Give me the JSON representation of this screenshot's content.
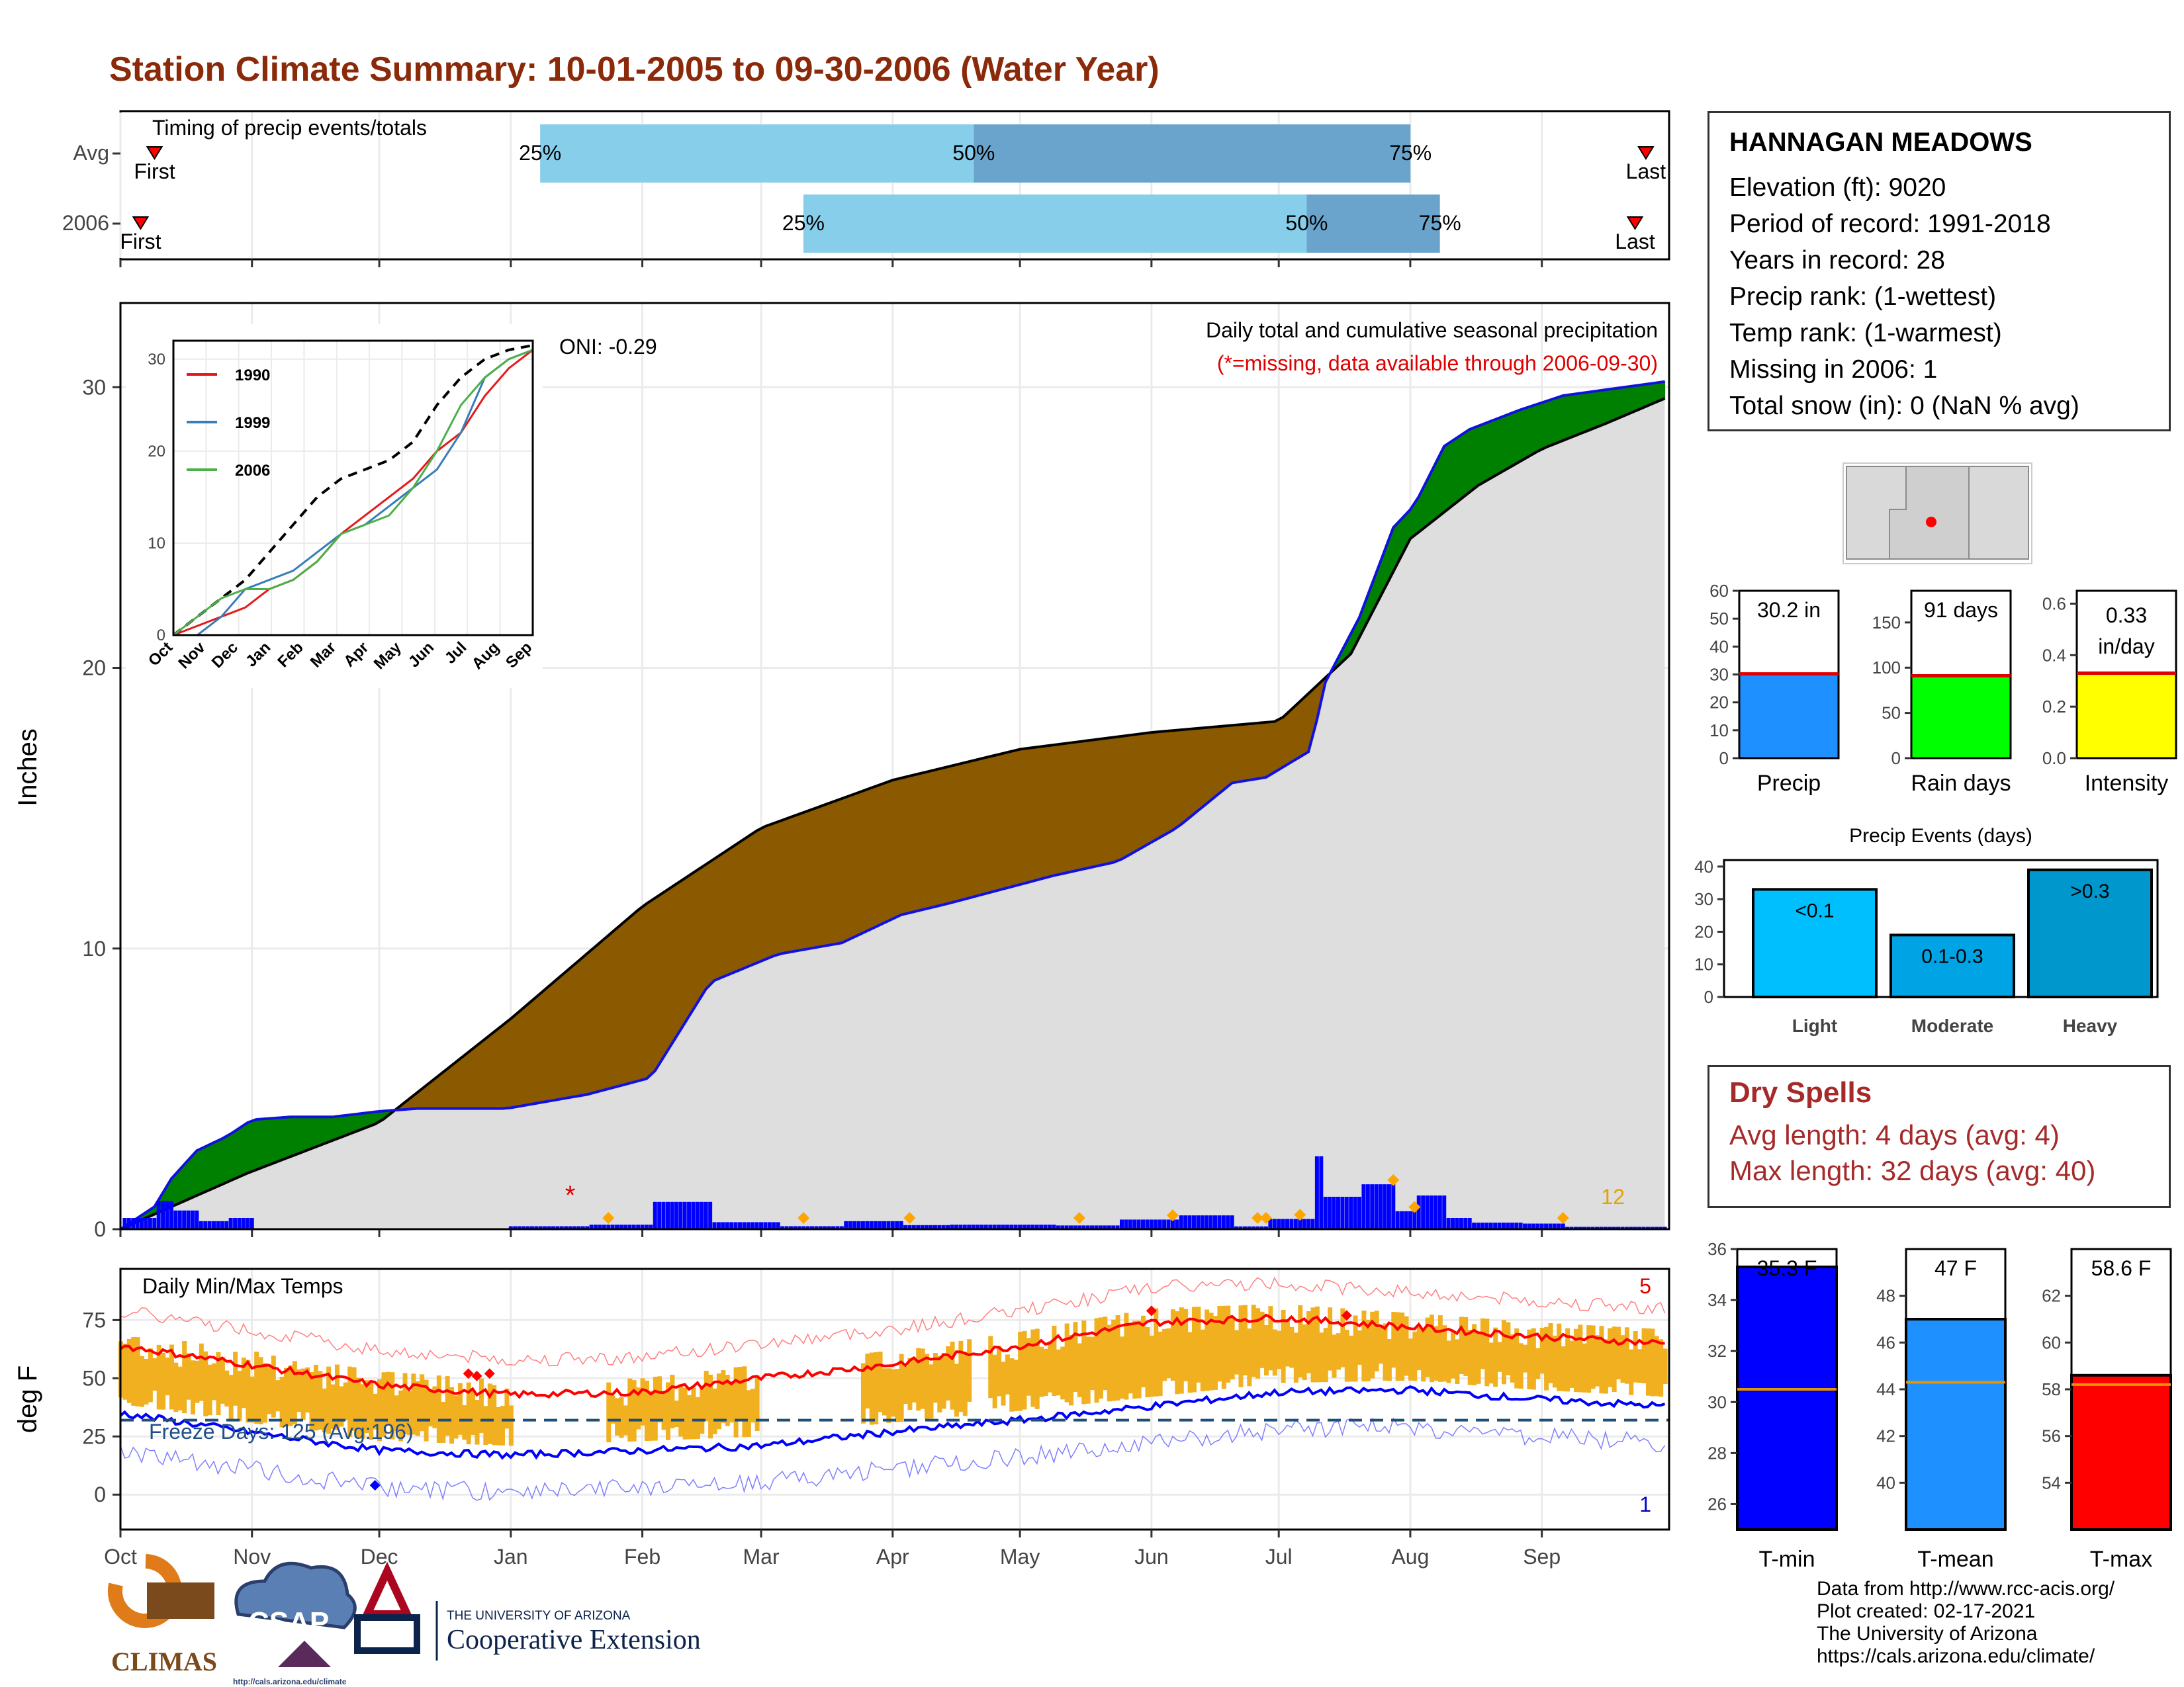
{
  "title": "Station Climate Summary: 10-01-2005 to 09-30-2006 (Water Year)",
  "timing": {
    "label": "Timing of precip events/totals",
    "rows": [
      {
        "name": "Avg",
        "first": 0.022,
        "p25": 0.271,
        "p50": 0.551,
        "p75": 0.833,
        "last": 0.985,
        "first_label": "First",
        "last_label": "Last"
      },
      {
        "name": "2006",
        "first": 0.013,
        "p25": 0.441,
        "p50": 0.766,
        "p75": 0.852,
        "last": 0.978,
        "first_label": "First",
        "last_label": "Last"
      }
    ],
    "pct_labels": [
      "25%",
      "50%",
      "75%"
    ]
  },
  "station": {
    "name": "HANNAGAN MEADOWS",
    "lines": [
      "Elevation (ft): 9020",
      "Period of record: 1991-2018",
      "Years in record: 28",
      "Precip rank:  (1-wettest)",
      "Temp rank:  (1-warmest)",
      "Missing in 2006: 1",
      "Total snow (in): 0 (NaN % avg)"
    ]
  },
  "dry_spells": {
    "title": "Dry Spells",
    "avg": "Avg length: 4 days (avg: 4)",
    "max": "Max length: 32 days (avg: 40)"
  },
  "credits": [
    "Data from http://www.rcc-acis.org/",
    "Plot created: 02-17-2021",
    "The University of Arizona",
    "https://cals.arizona.edu/climate/"
  ],
  "logos": {
    "climas": "CLIMAS",
    "csap": "CSAP",
    "csap_url": "http://cals.arizona.edu/climate",
    "ua_small": "THE UNIVERSITY OF ARIZONA",
    "ua_big": "Cooperative Extension"
  },
  "months": [
    "Oct",
    "Nov",
    "Dec",
    "Jan",
    "Feb",
    "Mar",
    "Apr",
    "May",
    "Jun",
    "Jul",
    "Aug",
    "Sep"
  ],
  "chart_data": [
    {
      "type": "area",
      "title": "Daily total and cumulative seasonal precipitation",
      "subtitle": "(*=missing, data available through 2006-09-30)",
      "ylabel": "Inches",
      "ylim": [
        0,
        33
      ],
      "yticks": [
        0,
        10,
        20,
        30
      ],
      "oni": "ONI: -0.29",
      "extreme_count": "12",
      "avg_cumulative": {
        "x_day": [
          0,
          30,
          61,
          92,
          123,
          151,
          182,
          212,
          243,
          273,
          290,
          304,
          320,
          335,
          350,
          364
        ],
        "y": [
          0,
          2.0,
          3.8,
          7.5,
          11.5,
          14.3,
          16.0,
          17.1,
          17.7,
          18.1,
          20.5,
          24.6,
          26.5,
          27.8,
          28.7,
          29.6
        ]
      },
      "obs_cumulative": {
        "x_day": [
          0,
          8,
          12,
          18,
          25,
          31,
          40,
          50,
          61,
          70,
          91,
          110,
          125,
          139,
          155,
          170,
          184,
          195,
          220,
          235,
          249,
          262,
          270,
          281,
          283,
          292,
          300,
          305,
          312,
          318,
          330,
          340,
          364
        ],
        "y": [
          0,
          0.8,
          1.8,
          2.8,
          3.3,
          3.9,
          4.0,
          4.0,
          4.2,
          4.3,
          4.3,
          4.8,
          5.4,
          8.8,
          9.8,
          10.2,
          11.2,
          11.6,
          12.6,
          13.1,
          14.3,
          15.9,
          16.1,
          17.1,
          19.2,
          21.8,
          25.0,
          25.8,
          27.9,
          28.5,
          29.2,
          29.7,
          30.2
        ]
      },
      "markers": {
        "missing_star_day": 106,
        "highlight_days": [
          115,
          161,
          186,
          226,
          248,
          268,
          270,
          278,
          300,
          305,
          340
        ]
      },
      "inset": {
        "type": "line",
        "series": [
          {
            "name": "1990",
            "color": "#e41a1c",
            "y": [
              0,
              1,
              2,
              3,
              5,
              6,
              8,
              11,
              13,
              15,
              17,
              20,
              22,
              26,
              29,
              31
            ]
          },
          {
            "name": "1999",
            "color": "#377eb8",
            "y": [
              0,
              0,
              2,
              5,
              6,
              7,
              9,
              11,
              12,
              14,
              16,
              18,
              22,
              28,
              30,
              31
            ]
          },
          {
            "name": "2006",
            "color": "#4daf4a",
            "y": [
              0,
              2,
              4,
              5,
              5,
              6,
              8,
              11,
              12,
              13,
              16,
              20,
              25,
              28,
              30,
              31
            ]
          }
        ],
        "avg_y": [
          0,
          2,
          4,
          6,
          9,
          12,
          15,
          17,
          18,
          19,
          21,
          25,
          28,
          30,
          31,
          31.5
        ],
        "yticks": [
          0,
          10,
          20,
          30
        ],
        "xlabels": [
          "Oct",
          "Nov",
          "Dec",
          "Jan",
          "Feb",
          "Mar",
          "Apr",
          "May",
          "Jun",
          "Jul",
          "Aug",
          "Sep"
        ]
      }
    },
    {
      "type": "line",
      "title": "Daily Min/Max Temps",
      "ylabel": "deg F",
      "ylim": [
        -15,
        97
      ],
      "yticks": [
        0,
        25,
        50,
        75
      ],
      "freeze_text": "Freeze Days: 125 (Avg:196)",
      "freeze_line": 32,
      "count_hot": "5",
      "count_cold": "1",
      "avg_max": {
        "x_day": [
          0,
          30,
          61,
          92,
          123,
          151,
          182,
          212,
          243,
          273,
          304,
          334,
          364
        ],
        "y": [
          64,
          56,
          47,
          43,
          44,
          50,
          56,
          64,
          74,
          76,
          72,
          68,
          65
        ]
      },
      "avg_min": {
        "x_day": [
          0,
          30,
          61,
          92,
          123,
          151,
          182,
          212,
          243,
          273,
          304,
          334,
          364
        ],
        "y": [
          35,
          27,
          19,
          17,
          19,
          21,
          27,
          32,
          38,
          44,
          45,
          41,
          38
        ]
      }
    },
    {
      "type": "bar",
      "categories": [
        "Precip",
        "Rain days",
        "Intensity"
      ],
      "values": [
        30.2,
        91,
        0.33
      ],
      "labels": [
        "30.2 in",
        "91 days",
        "0.33 in/day"
      ],
      "ylims": [
        [
          0,
          60
        ],
        [
          0,
          185
        ],
        [
          0,
          0.65
        ]
      ],
      "yticks": [
        [
          0,
          10,
          20,
          30,
          40,
          50,
          60
        ],
        [
          0,
          50,
          100,
          150
        ],
        [
          0.0,
          0.2,
          0.4,
          0.6
        ]
      ],
      "colors": [
        "#1e90ff",
        "#00ff00",
        "#ffff00"
      ]
    },
    {
      "type": "bar",
      "title": "Precip Events (days)",
      "categories": [
        "Light",
        "Moderate",
        "Heavy"
      ],
      "values": [
        33,
        19,
        39
      ],
      "labels": [
        "<0.1",
        "0.1-0.3",
        ">0.3"
      ],
      "ylim": [
        0,
        42
      ],
      "yticks": [
        0,
        10,
        20,
        30,
        40
      ],
      "colors": [
        "#00bfff",
        "#00a4e4",
        "#0098cc"
      ]
    },
    {
      "type": "bar",
      "categories": [
        "T-min",
        "T-mean",
        "T-max"
      ],
      "values": [
        35.3,
        47,
        58.6
      ],
      "labels": [
        "35.3 F",
        "47 F",
        "58.6 F"
      ],
      "averages": [
        30.5,
        44.3,
        58.2
      ],
      "ylims": [
        [
          25,
          36
        ],
        [
          38,
          50
        ],
        [
          52,
          64
        ]
      ],
      "yticks": [
        [
          26,
          28,
          30,
          32,
          34,
          36
        ],
        [
          40,
          42,
          44,
          46,
          48
        ],
        [
          54,
          56,
          58,
          60,
          62
        ]
      ],
      "colors": [
        "#0000ff",
        "#1e90ff",
        "#ff0000"
      ]
    }
  ]
}
